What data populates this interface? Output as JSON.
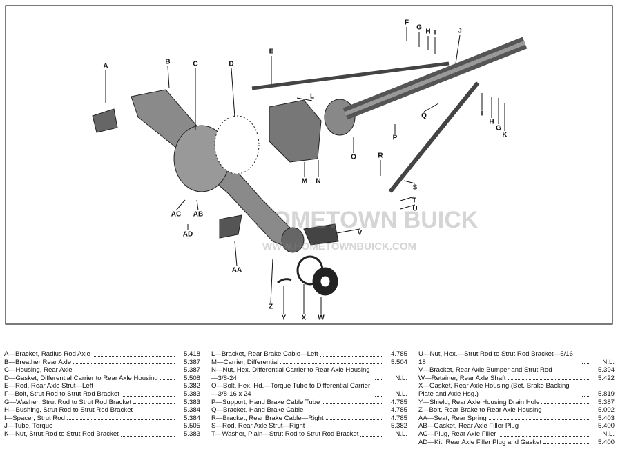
{
  "callouts": [
    "A",
    "B",
    "C",
    "D",
    "E",
    "F",
    "G",
    "H",
    "I",
    "J",
    "L",
    "M",
    "N",
    "O",
    "P",
    "Q",
    "R",
    "S",
    "T",
    "U",
    "V",
    "W",
    "X",
    "Y",
    "Z",
    "AA",
    "AB",
    "AC",
    "AD",
    "I",
    "H",
    "G",
    "K"
  ],
  "watermark": {
    "title": "HOMETOWN BUICK",
    "url": "WWW.HOMETOWNBUICK.COM"
  },
  "legend": [
    [
      {
        "text": "A—Bracket, Radius Rod Axle",
        "ref": "5.418"
      },
      {
        "text": "B—Breather Rear Axle",
        "ref": "5.387"
      },
      {
        "text": "C—Housing, Rear Axle",
        "ref": "5.387"
      },
      {
        "text": "D—Gasket, Differential Carrier to Rear Axle Housing",
        "ref": "5.508"
      },
      {
        "text": "E—Rod, Rear Axle Strut—Left",
        "ref": "5.382"
      },
      {
        "text": "F—Bolt, Strut Rod to Strut Rod Bracket",
        "ref": "5.383"
      },
      {
        "text": "G—Washer, Strut Rod to Strut Rod Bracket",
        "ref": "5.383"
      },
      {
        "text": "H—Bushing, Strut Rod to Strut Rod Bracket",
        "ref": "5.384"
      },
      {
        "text": "I—Spacer, Strut Rod",
        "ref": "5.384"
      },
      {
        "text": "J—Tube, Torque",
        "ref": "5.505"
      },
      {
        "text": "K—Nut, Strut Rod to Strut Rod Bracket",
        "ref": "5.383"
      }
    ],
    [
      {
        "text": "L—Bracket, Rear Brake Cable—Left",
        "ref": "4.785"
      },
      {
        "text": "M—Carrier, Differential",
        "ref": "5.504"
      },
      {
        "text": "N—Nut, Hex. Differential Carrier to Rear Axle Housing—3/8-24",
        "ref": "N.L."
      },
      {
        "text": "O—Bolt, Hex. Hd.—Torque Tube to Differential Carrier—3/8-16 x 24",
        "ref": "N.L."
      },
      {
        "text": "P—Support, Hand Brake Cable Tube",
        "ref": "4.785"
      },
      {
        "text": "Q—Bracket, Hand Brake Cable",
        "ref": "4.785"
      },
      {
        "text": "R—Bracket, Rear Brake Cable—Right",
        "ref": "4.785"
      },
      {
        "text": "S—Rod, Rear Axle Strut—Right",
        "ref": "5.382"
      },
      {
        "text": "T—Washer, Plain—Strut Rod to Strut Rod Bracket",
        "ref": "N.L."
      }
    ],
    [
      {
        "text": "U—Nut, Hex.—Strut Rod to Strut Rod Bracket—5/16-18",
        "ref": "N.L."
      },
      {
        "text": "V—Bracket, Rear Axle Bumper and Strut Rod",
        "ref": "5.394"
      },
      {
        "text": "W—Retainer, Rear Axle Shaft",
        "ref": "5.422"
      },
      {
        "text": "X—Gasket, Rear Axle Housing (Bet. Brake Backing Plate and Axle Hsg.)",
        "ref": "5.819"
      },
      {
        "text": "Y—Shield, Rear Axle Housing Drain Hole",
        "ref": "5.387"
      },
      {
        "text": "Z—Bolt, Rear Brake to Rear Axle Housing",
        "ref": "5.002"
      },
      {
        "text": "AA—Seat, Rear Spring",
        "ref": "5.403"
      },
      {
        "text": "AB—Gasket, Rear Axle Filler Plug",
        "ref": "5.400"
      },
      {
        "text": "AC—Plug, Rear Axle Filler",
        "ref": "N.L."
      },
      {
        "text": "AD—Kit, Rear Axle Filler Plug and Gasket",
        "ref": "5.400"
      }
    ]
  ]
}
